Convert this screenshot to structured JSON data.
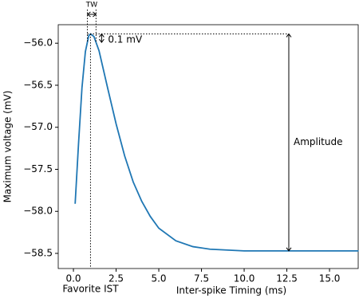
{
  "chart_data": {
    "type": "line",
    "xlabel": "Inter-spike Timing (ms)",
    "ylabel": "Maximum voltage (mV)",
    "annotations": {
      "tw": "TW",
      "delta": "0.1 mV",
      "amplitude": "Amplitude",
      "favorite": "Favorite IST"
    },
    "series": [
      {
        "color": "#1f77b4",
        "x": [
          0.1,
          0.3,
          0.5,
          0.7,
          0.9,
          1.0,
          1.2,
          1.5,
          2.0,
          2.5,
          3.0,
          3.5,
          4.0,
          4.5,
          5.0,
          6.0,
          7.0,
          8.0,
          10.0,
          12.0,
          14.0,
          16.7
        ],
        "values": [
          -57.91,
          -57.19,
          -56.53,
          -56.1,
          -55.91,
          -55.89,
          -55.92,
          -56.09,
          -56.53,
          -56.96,
          -57.34,
          -57.65,
          -57.88,
          -58.06,
          -58.2,
          -58.35,
          -58.42,
          -58.45,
          -58.47,
          -58.47,
          -58.47,
          -58.47
        ]
      }
    ],
    "xlim": [
      -0.89,
      16.68
    ],
    "ylim": [
      -58.68,
      -55.78
    ],
    "xticks": [
      {
        "value": 0,
        "label": "0.0"
      },
      {
        "value": 2.5,
        "label": "2.5"
      },
      {
        "value": 5,
        "label": "5.0"
      },
      {
        "value": 7.5,
        "label": "7.5"
      },
      {
        "value": 10,
        "label": "10.0"
      },
      {
        "value": 12.5,
        "label": "12.5"
      },
      {
        "value": 15,
        "label": "15.0"
      }
    ],
    "yticks": [
      {
        "value": -56,
        "label": "−56.0"
      },
      {
        "value": -56.5,
        "label": "−56.5"
      },
      {
        "value": -57,
        "label": "−57.0"
      },
      {
        "value": -57.5,
        "label": "−57.5"
      },
      {
        "value": -58,
        "label": "−58.0"
      },
      {
        "value": -58.5,
        "label": "−58.5"
      }
    ]
  }
}
